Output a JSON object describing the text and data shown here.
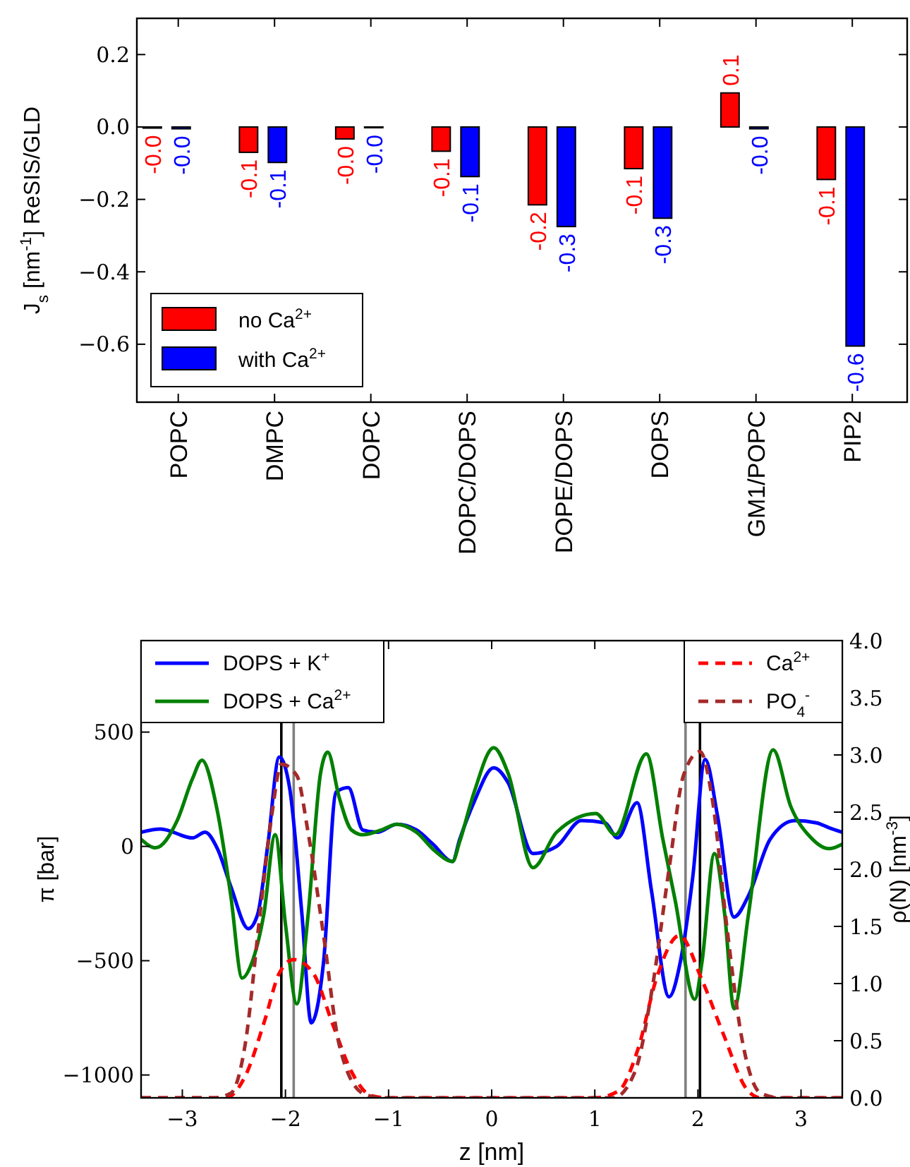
{
  "chart_data": [
    {
      "type": "bar",
      "ylabel": "J$_{s}$ [nm$^{-1}$] ReSIS/GLD",
      "categories": [
        "POPC",
        "DMPC",
        "DOPC",
        "DOPC/DOPS",
        "DOPE/DOPS",
        "DOPS",
        "GM1/POPC",
        "PIP2"
      ],
      "series": [
        {
          "name": "no Ca$^{2+}$",
          "color": "#ff0000",
          "values": [
            -0.003,
            -0.07,
            -0.033,
            -0.067,
            -0.215,
            -0.115,
            0.094,
            -0.145
          ],
          "value_labels": [
            "-0.0",
            "-0.1",
            "-0.0",
            "-0.1",
            "-0.2",
            "-0.1",
            "0.1",
            "-0.1"
          ]
        },
        {
          "name": "with Ca$^{2+}$",
          "color": "#0000ff",
          "values": [
            -0.005,
            -0.098,
            -0.002,
            -0.137,
            -0.275,
            -0.252,
            -0.005,
            -0.605
          ],
          "value_labels": [
            "-0.0",
            "-0.1",
            "-0.0",
            "-0.1",
            "-0.3",
            "-0.3",
            "-0.0",
            "-0.6"
          ]
        }
      ],
      "ylim": [
        -0.76,
        0.3
      ],
      "yticks": [
        {
          "value": -0.6,
          "label": "−0.6"
        },
        {
          "value": -0.4,
          "label": "−0.4"
        },
        {
          "value": -0.2,
          "label": "−0.2"
        },
        {
          "value": 0,
          "label": "0.0"
        },
        {
          "value": 0.2,
          "label": "0.2"
        }
      ],
      "legend": "bottom left",
      "grid": false
    },
    {
      "type": "line",
      "xlabel": "z [nm]",
      "ylabel": "π [bar]",
      "y2label": "ρ(N) [nm$^{-3}$]",
      "xlim": [
        -3.4,
        3.4
      ],
      "xticks": [
        {
          "value": -3,
          "label": "−3"
        },
        {
          "value": -2,
          "label": "−2"
        },
        {
          "value": -1,
          "label": "−1"
        },
        0,
        1,
        2,
        3
      ],
      "ylim": [
        -1100,
        900
      ],
      "yticks": [
        {
          "value": -1000,
          "label": "−1000"
        },
        {
          "value": -500,
          "label": "−500"
        },
        0,
        500
      ],
      "y2lim": [
        0,
        4
      ],
      "y2ticks": [
        {
          "value": 0,
          "label": "0.0"
        },
        {
          "value": 0.5,
          "label": "0.5"
        },
        {
          "value": 1,
          "label": "1.0"
        },
        {
          "value": 1.5,
          "label": "1.5"
        },
        {
          "value": 2,
          "label": "2.0"
        },
        {
          "value": 2.5,
          "label": "2.5"
        },
        {
          "value": 3,
          "label": "3.0"
        },
        {
          "value": 3.5,
          "label": "3.5"
        },
        {
          "value": 4,
          "label": "4.0"
        }
      ],
      "legend": "top",
      "ref_lines": [
        {
          "axis": "x",
          "value": -2.04,
          "color": "#000000",
          "line_style": "solid"
        },
        {
          "axis": "x",
          "value": -1.92,
          "color": "#808080",
          "line_style": "solid"
        },
        {
          "axis": "x",
          "value": 1.88,
          "color": "#808080",
          "line_style": "solid"
        },
        {
          "axis": "x",
          "value": 2.02,
          "color": "#000000",
          "line_style": "solid"
        }
      ],
      "series": [
        {
          "name": "DOPS + K$^{+}$",
          "color": "#0000ff",
          "line_style": "solid",
          "x": [
            -3.4,
            -3.21,
            -2.9,
            -2.78,
            -2.66,
            -2.53,
            -2.36,
            -2.27,
            -2.17,
            -2.06,
            -1.96,
            -1.84,
            -1.75,
            -1.63,
            -1.51,
            -1.39,
            -1.25,
            -1.11,
            -0.92,
            -0.73,
            -0.57,
            -0.38,
            -0.31,
            -0.17,
            0.02,
            0.16,
            0.4,
            0.63,
            0.87,
            1.1,
            1.22,
            1.41,
            1.55,
            1.72,
            1.83,
            1.95,
            2.07,
            2.19,
            2.35,
            2.49,
            2.7,
            2.94,
            3.15,
            3.27,
            3.4
          ],
          "values": [
            62,
            76,
            37,
            62,
            -10,
            -175,
            -360,
            -298,
            10,
            391,
            257,
            -298,
            -772,
            -504,
            237,
            257,
            72,
            62,
            97,
            72,
            10,
            -66,
            31,
            195,
            344,
            278,
            -31,
            0,
            113,
            103,
            37,
            191,
            -195,
            -658,
            -504,
            -134,
            381,
            134,
            -309,
            -216,
            31,
            113,
            103,
            82,
            62
          ]
        },
        {
          "name": "DOPS + Ca$^{2+}$",
          "color": "#008000",
          "line_style": "solid",
          "x": [
            -3.4,
            -3.26,
            -3.05,
            -2.9,
            -2.81,
            -2.66,
            -2.53,
            -2.42,
            -2.33,
            -2.21,
            -2.1,
            -2.0,
            -1.89,
            -1.78,
            -1.66,
            -1.59,
            -1.48,
            -1.36,
            -1.25,
            -1.07,
            -0.92,
            -0.73,
            -0.55,
            -0.38,
            -0.31,
            -0.17,
            0.02,
            0.16,
            0.4,
            0.63,
            1.01,
            1.2,
            1.5,
            1.66,
            1.78,
            1.97,
            2.04,
            2.16,
            2.26,
            2.35,
            2.49,
            2.73,
            2.9,
            3.09,
            3.27,
            3.4
          ],
          "values": [
            31,
            -6,
            113,
            298,
            377,
            154,
            -216,
            -576,
            -514,
            -298,
            51,
            -340,
            -689,
            -298,
            319,
            412,
            216,
            72,
            51,
            72,
            97,
            62,
            -20,
            -66,
            21,
            237,
            432,
            319,
            -93,
            62,
            144,
            51,
            405,
            31,
            -237,
            -669,
            -504,
            -31,
            -298,
            -710,
            -298,
            422,
            175,
            41,
            -10,
            10
          ]
        },
        {
          "name": "Ca$^{2+}$",
          "color": "#ff0000",
          "line_style": "dashed",
          "axis": "y2",
          "x": [
            -3.4,
            -2.58,
            -2.39,
            -2.2,
            -2.06,
            -1.92,
            -1.73,
            -1.54,
            -1.36,
            -1.17,
            -1.02,
            1.0,
            1.23,
            1.42,
            1.6,
            1.82,
            2.04,
            2.25,
            2.47,
            2.61,
            3.4
          ],
          "values": [
            0,
            0,
            0.19,
            0.68,
            1.09,
            1.21,
            1.09,
            0.64,
            0.23,
            0.02,
            0,
            0,
            0.06,
            0.43,
            1.05,
            1.42,
            1.03,
            0.55,
            0.08,
            0,
            0
          ]
        },
        {
          "name": "PO$_{4}$$^{-}$",
          "color": "#a52a2a",
          "line_style": "dashed",
          "axis": "y2",
          "x": [
            -3.4,
            -2.7,
            -2.53,
            -2.39,
            -2.25,
            -2.13,
            -2.04,
            -1.89,
            -1.78,
            -1.63,
            -1.48,
            -1.25,
            -1.07,
            1.18,
            1.39,
            1.55,
            1.72,
            1.86,
            2.02,
            2.14,
            2.28,
            2.42,
            2.61,
            2.8,
            3.4
          ],
          "values": [
            0,
            0,
            0.04,
            0.47,
            1.58,
            2.49,
            2.92,
            2.82,
            2.32,
            1.42,
            0.47,
            0.04,
            0,
            0,
            0.23,
            0.92,
            2.0,
            2.82,
            3.03,
            2.61,
            1.5,
            0.55,
            0.04,
            0,
            0
          ]
        }
      ]
    }
  ]
}
